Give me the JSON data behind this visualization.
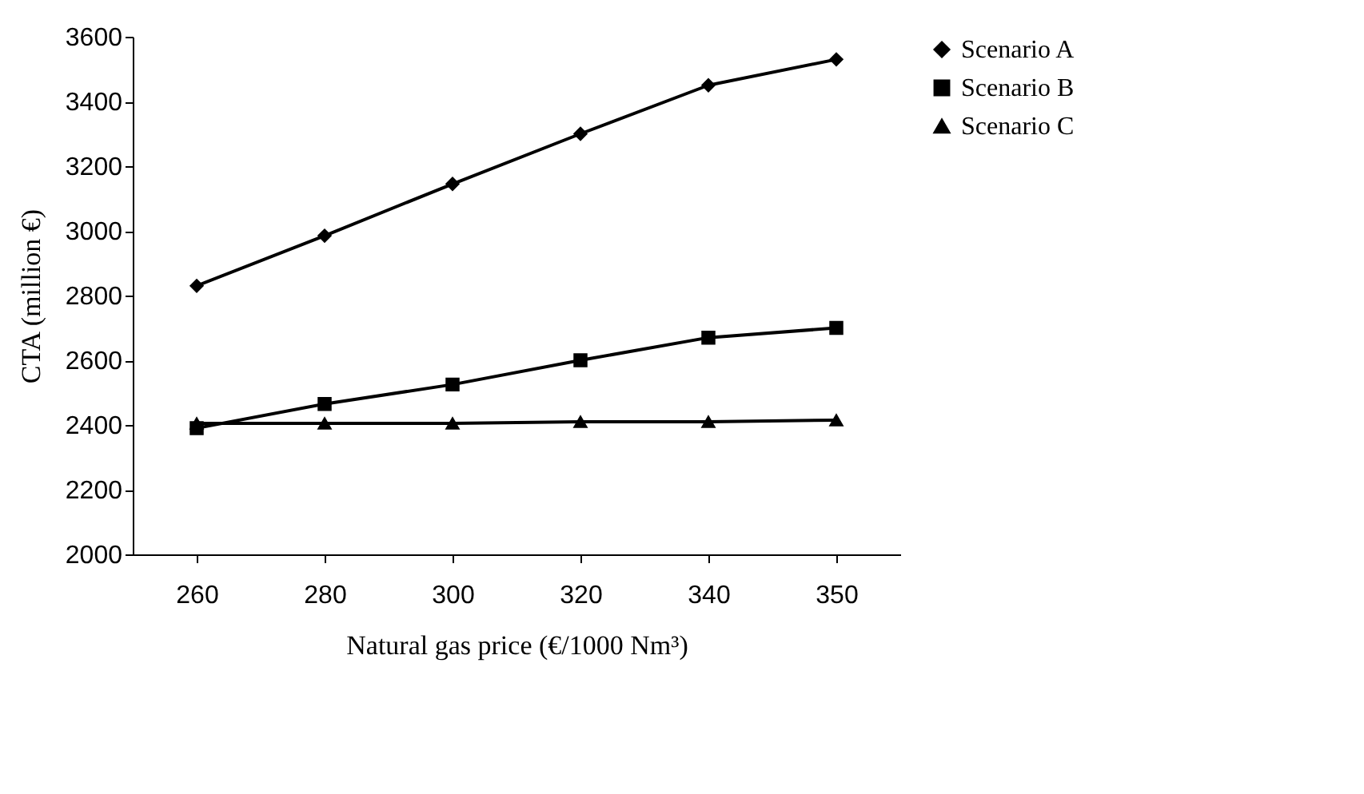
{
  "chart_data": {
    "type": "line",
    "xlabel": "Natural gas price (€/1000 Nm³)",
    "ylabel": "CTA (million €)",
    "categories": [
      "260",
      "280",
      "300",
      "320",
      "340",
      "350"
    ],
    "series": [
      {
        "name": "Scenario A",
        "color": "#000000",
        "marker": "diamond",
        "values": [
          2830,
          2985,
          3145,
          3300,
          3450,
          3530
        ]
      },
      {
        "name": "Scenario B",
        "color": "#000000",
        "marker": "square",
        "values": [
          2390,
          2465,
          2525,
          2600,
          2670,
          2700
        ]
      },
      {
        "name": "Scenario C",
        "color": "#000000",
        "marker": "triangle",
        "values": [
          2405,
          2405,
          2405,
          2410,
          2410,
          2415
        ]
      }
    ],
    "ylim": [
      2000,
      3600
    ],
    "yticks": [
      2000,
      2200,
      2400,
      2600,
      2800,
      3000,
      3200,
      3400,
      3600
    ],
    "grid": false,
    "legend": "right",
    "line_style": "solid"
  }
}
